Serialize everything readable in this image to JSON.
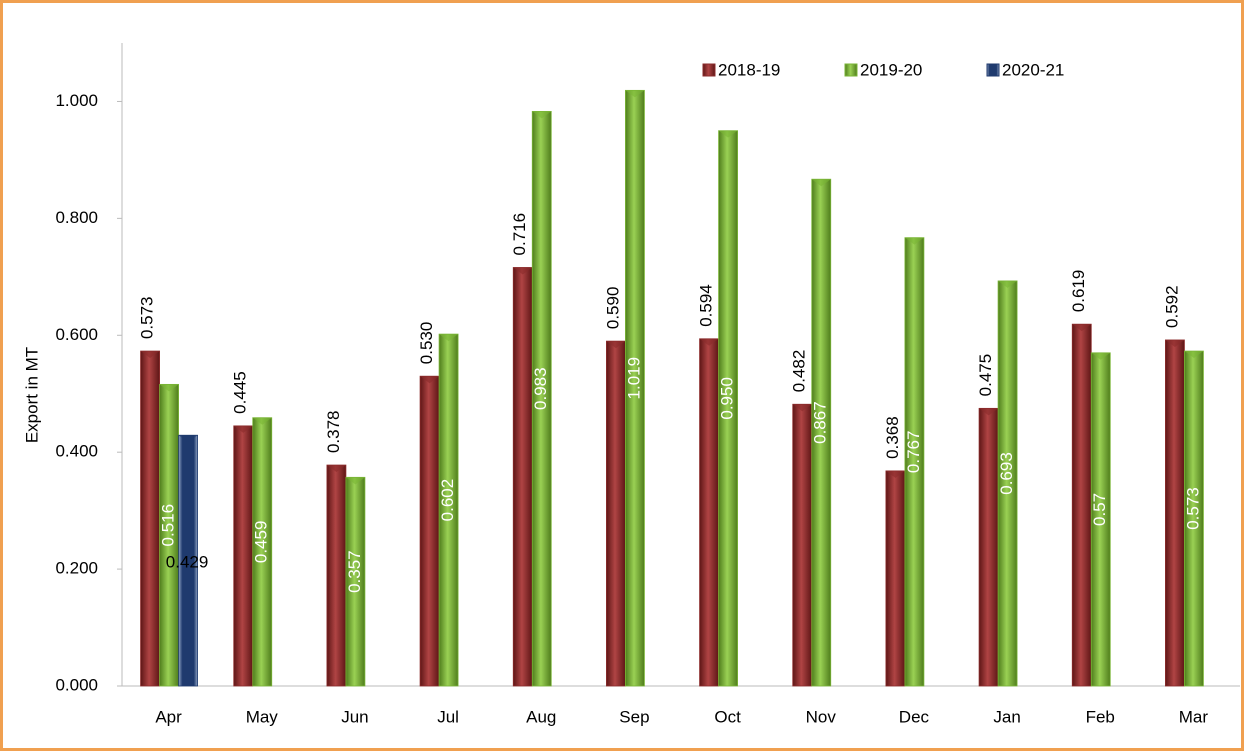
{
  "chart_data": {
    "type": "bar",
    "y_axis_label": "Export in MT",
    "categories": [
      "Apr",
      "May",
      "Jun",
      "Jul",
      "Aug",
      "Sep",
      "Oct",
      "Nov",
      "Dec",
      "Jan",
      "Feb",
      "Mar"
    ],
    "series": [
      {
        "name": "2018-19",
        "color": "#8b2b2b",
        "values": [
          0.573,
          0.445,
          0.378,
          0.53,
          0.716,
          0.59,
          0.594,
          0.482,
          0.368,
          0.475,
          0.619,
          0.592
        ],
        "value_labels": [
          "0.573",
          "0.445",
          "0.378",
          "0.530",
          "0.716",
          "0.590",
          "0.594",
          "0.482",
          "0.368",
          "0.475",
          "0.619",
          "0.592"
        ]
      },
      {
        "name": "2019-20",
        "color": "#7ab536",
        "values": [
          0.516,
          0.459,
          0.357,
          0.602,
          0.983,
          1.019,
          0.95,
          0.867,
          0.767,
          0.693,
          0.57,
          0.573
        ],
        "value_labels": [
          "0.516",
          "0.459",
          "0.357",
          "0.602",
          "0.983",
          "1.019",
          "0.950",
          "0.867",
          "0.767",
          "0.693",
          "0.57",
          "0.573"
        ]
      },
      {
        "name": "2020-21",
        "color": "#1f3a6e",
        "values": [
          0.429,
          null,
          null,
          null,
          null,
          null,
          null,
          null,
          null,
          null,
          null,
          null
        ],
        "value_labels": [
          "0.429",
          null,
          null,
          null,
          null,
          null,
          null,
          null,
          null,
          null,
          null,
          null
        ]
      }
    ],
    "ylim": [
      0,
      1.1
    ],
    "yticks": [
      {
        "value": 0,
        "label": "0.000"
      },
      {
        "value": 0.2,
        "label": "0.200"
      },
      {
        "value": 0.4,
        "label": "0.400"
      },
      {
        "value": 0.6,
        "label": "0.600"
      },
      {
        "value": 0.8,
        "label": "0.800"
      },
      {
        "value": 1.0,
        "label": "1.000"
      }
    ],
    "grid": false,
    "legend": "top-right"
  }
}
